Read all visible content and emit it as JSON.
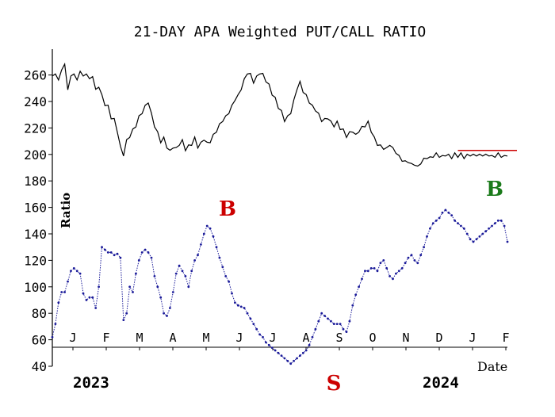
{
  "chart_data": {
    "type": "line",
    "title": "21-DAY APA Weighted PUT/CALL RATIO",
    "ylabel": "Ratio",
    "xlabel": "Date",
    "ylim": [
      40,
      270
    ],
    "y_ticks": [
      40,
      60,
      80,
      100,
      120,
      140,
      160,
      180,
      200,
      220,
      240,
      260
    ],
    "month_labels": [
      "J",
      "F",
      "M",
      "A",
      "M",
      "J",
      "J",
      "A",
      "S",
      "O",
      "N",
      "D",
      "J",
      "F"
    ],
    "year_labels": [
      "2023",
      "2024"
    ],
    "grid": false,
    "colors": {
      "price": "#000000",
      "ratio": "#1a1a99",
      "resistance": "#cc0000",
      "buy_b1": "#cc0000",
      "buy_b2": "#1a7a1a",
      "sell": "#cc0000"
    },
    "series": [
      {
        "kind": "price",
        "x": [
          0,
          2,
          4,
          6,
          8,
          10,
          12,
          14,
          16,
          18,
          20,
          22,
          24,
          26,
          28,
          30,
          32,
          34,
          36,
          38,
          40,
          42,
          44,
          46,
          48,
          50,
          52,
          54,
          56,
          58,
          60,
          62,
          64,
          66,
          68,
          70,
          72,
          74,
          76,
          78,
          80,
          82,
          84,
          86,
          88,
          90,
          92,
          94,
          96,
          98,
          100,
          102,
          104,
          106,
          108,
          110,
          112,
          114,
          116,
          118,
          120,
          122,
          124,
          126,
          128,
          130,
          132,
          134,
          136,
          138,
          140,
          142,
          144,
          146,
          148,
          150,
          152,
          154,
          156,
          158,
          160,
          162,
          164,
          166,
          168,
          170,
          172,
          174,
          176,
          178,
          180,
          182,
          184,
          186,
          188,
          190,
          192,
          194,
          196,
          198,
          200,
          202,
          204,
          206,
          208,
          210,
          212,
          214,
          216,
          218,
          220,
          222,
          224,
          226,
          228,
          230,
          232,
          234,
          236,
          238,
          240,
          242,
          244,
          246,
          248,
          250,
          252,
          254,
          256,
          258,
          260,
          262,
          264,
          266,
          268,
          270,
          272,
          274,
          276,
          278,
          280,
          282,
          284,
          286,
          288,
          290,
          292,
          294
        ],
        "values": [
          258,
          262,
          255,
          265,
          267,
          250,
          258,
          262,
          255,
          264,
          258,
          262,
          256,
          260,
          248,
          252,
          244,
          238,
          236,
          228,
          226,
          218,
          205,
          200,
          210,
          214,
          218,
          222,
          228,
          232,
          236,
          240,
          230,
          222,
          216,
          210,
          212,
          206,
          202,
          206,
          204,
          208,
          210,
          204,
          206,
          208,
          212,
          206,
          208,
          212,
          208,
          210,
          214,
          218,
          222,
          226,
          228,
          232,
          236,
          242,
          244,
          250,
          256,
          262,
          260,
          255,
          258,
          262,
          260,
          256,
          252,
          246,
          242,
          236,
          232,
          226,
          228,
          232,
          240,
          250,
          254,
          248,
          244,
          240,
          236,
          234,
          230,
          226,
          226,
          228,
          224,
          222,
          224,
          220,
          218,
          214,
          216,
          218,
          214,
          218,
          220,
          222,
          224,
          218,
          212,
          208,
          206,
          205,
          204,
          208,
          204,
          202,
          198,
          196,
          194,
          195,
          192,
          193,
          190,
          194,
          196,
          198,
          197,
          199,
          200,
          199,
          198,
          200,
          199,
          198,
          200,
          199,
          200,
          198,
          199,
          200,
          199,
          200,
          199,
          200,
          199,
          200,
          198,
          199,
          200,
          199,
          198,
          200
        ]
      },
      {
        "kind": "ratio",
        "x": [
          0,
          2,
          4,
          6,
          8,
          10,
          12,
          14,
          16,
          18,
          20,
          22,
          24,
          26,
          28,
          30,
          32,
          34,
          36,
          38,
          40,
          42,
          44,
          46,
          48,
          50,
          52,
          54,
          56,
          58,
          60,
          62,
          64,
          66,
          68,
          70,
          72,
          74,
          76,
          78,
          80,
          82,
          84,
          86,
          88,
          90,
          92,
          94,
          96,
          98,
          100,
          102,
          104,
          106,
          108,
          110,
          112,
          114,
          116,
          118,
          120,
          122,
          124,
          126,
          128,
          130,
          132,
          134,
          136,
          138,
          140,
          142,
          144,
          146,
          148,
          150,
          152,
          154,
          156,
          158,
          160,
          162,
          164,
          166,
          168,
          170,
          172,
          174,
          176,
          178,
          180,
          182,
          184,
          186,
          188,
          190,
          192,
          194,
          196,
          198,
          200,
          202,
          204,
          206,
          208,
          210,
          212,
          214,
          216,
          218,
          220,
          222,
          224,
          226,
          228,
          230,
          232,
          234,
          236,
          238,
          240,
          242,
          244,
          246,
          248,
          250,
          252,
          254,
          256,
          258,
          260,
          262,
          264,
          266,
          268,
          270,
          272,
          274,
          276,
          278,
          280,
          282,
          284,
          286,
          288,
          290,
          292,
          294
        ],
        "values": [
          62,
          72,
          88,
          96,
          96,
          104,
          112,
          114,
          112,
          110,
          95,
          90,
          92,
          92,
          84,
          100,
          130,
          128,
          126,
          126,
          124,
          125,
          122,
          75,
          80,
          100,
          96,
          110,
          120,
          126,
          128,
          126,
          122,
          108,
          100,
          92,
          80,
          78,
          84,
          96,
          110,
          116,
          112,
          108,
          100,
          112,
          120,
          124,
          132,
          140,
          146,
          144,
          138,
          130,
          122,
          115,
          108,
          104,
          95,
          88,
          86,
          85,
          84,
          80,
          76,
          72,
          68,
          64,
          62,
          58,
          56,
          54,
          52,
          50,
          48,
          46,
          44,
          42,
          44,
          46,
          48,
          50,
          52,
          56,
          62,
          68,
          74,
          80,
          78,
          76,
          74,
          72,
          72,
          72,
          68,
          66,
          74,
          86,
          94,
          100,
          106,
          112,
          112,
          114,
          114,
          112,
          118,
          120,
          114,
          108,
          106,
          110,
          112,
          114,
          118,
          122,
          124,
          120,
          118,
          124,
          130,
          138,
          144,
          148,
          150,
          152,
          156,
          158,
          156,
          154,
          150,
          148,
          146,
          144,
          140,
          136,
          134,
          136,
          138,
          140,
          142,
          144,
          146,
          148,
          150,
          150,
          146,
          134
        ],
        "name": ""
      }
    ],
    "resistance_level": 203,
    "annotations": [
      {
        "text": "B",
        "x": 104,
        "y": 160,
        "series": "ratio"
      },
      {
        "text": "S",
        "x": 164,
        "y": 28,
        "series": "ratio"
      },
      {
        "text": "B",
        "x": 254,
        "y": 170,
        "series": "ratio"
      }
    ]
  }
}
